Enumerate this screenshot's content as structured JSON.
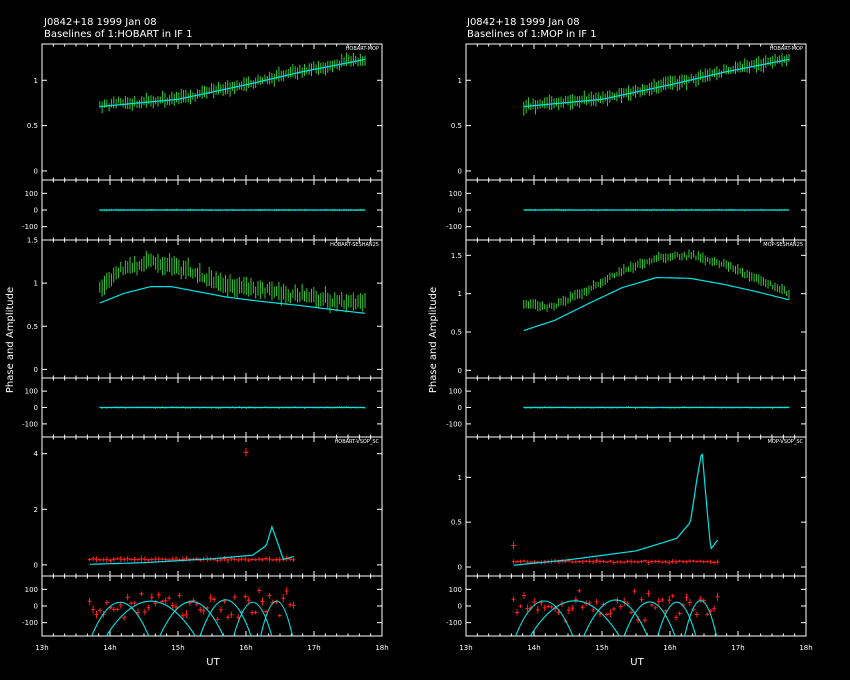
{
  "chart_data": {
    "type": "line",
    "figures": [
      {
        "title_line1": "J0842+18  1999 Jan 08",
        "title_line2": "Baselines of 1:HOBART in IF 1",
        "ylabel": "Phase and Amplitude",
        "xlabel": "UT",
        "x_ticks": [
          "13h",
          "14h",
          "15h",
          "16h",
          "17h",
          "18h"
        ],
        "x_range_hours": [
          13.0,
          18.0
        ],
        "rows": [
          {
            "baseline": "HOBART-MOP",
            "data_color": "#33cc33",
            "model_color": "#00e5e5",
            "amp": {
              "range": [
                -0.1,
                1.4
              ],
              "ticks": [
                0,
                0.5,
                1
              ],
              "tick_labels": [
                "0",
                "0.5",
                "1"
              ],
              "t_start": 13.85,
              "t_end": 17.75,
              "npts": 115,
              "err": 0.06,
              "data_curve": [
                [
                  13.85,
                  0.72
                ],
                [
                  15.0,
                  0.8
                ],
                [
                  16.0,
                  0.96
                ],
                [
                  16.8,
                  1.1
                ],
                [
                  17.75,
                  1.24
                ]
              ],
              "model_curve": [
                [
                  13.85,
                  0.71
                ],
                [
                  15.0,
                  0.79
                ],
                [
                  16.0,
                  0.95
                ],
                [
                  16.8,
                  1.09
                ],
                [
                  17.75,
                  1.23
                ]
              ]
            },
            "phase": {
              "range": [
                -180,
                180
              ],
              "ticks": [
                100,
                0,
                -100
              ],
              "tick_labels": [
                "100",
                "0",
                "-100"
              ],
              "data_spread": 4,
              "model_curve": [
                [
                  13.85,
                  0
                ],
                [
                  17.75,
                  0
                ]
              ]
            }
          },
          {
            "baseline": "HOBART-SESHAN25",
            "data_color": "#33cc33",
            "model_color": "#00e5e5",
            "amp": {
              "range": [
                -0.1,
                1.5
              ],
              "ticks": [
                0,
                0.5,
                1,
                1.5
              ],
              "tick_labels": [
                "0",
                "0.5",
                "1",
                "1.5"
              ],
              "t_start": 13.85,
              "t_end": 17.75,
              "npts": 115,
              "err": 0.08,
              "data_curve": [
                [
                  13.85,
                  0.95
                ],
                [
                  14.2,
                  1.18
                ],
                [
                  14.6,
                  1.24
                ],
                [
                  14.9,
                  1.2
                ],
                [
                  15.3,
                  1.1
                ],
                [
                  15.7,
                  0.98
                ],
                [
                  16.2,
                  0.92
                ],
                [
                  16.8,
                  0.86
                ],
                [
                  17.3,
                  0.8
                ],
                [
                  17.75,
                  0.78
                ]
              ],
              "model_curve": [
                [
                  13.85,
                  0.77
                ],
                [
                  14.2,
                  0.88
                ],
                [
                  14.6,
                  0.96
                ],
                [
                  14.9,
                  0.96
                ],
                [
                  15.3,
                  0.9
                ],
                [
                  15.7,
                  0.84
                ],
                [
                  16.2,
                  0.79
                ],
                [
                  16.8,
                  0.74
                ],
                [
                  17.3,
                  0.69
                ],
                [
                  17.75,
                  0.65
                ]
              ]
            },
            "phase": {
              "range": [
                -180,
                180
              ],
              "ticks": [
                100,
                0,
                -100
              ],
              "tick_labels": [
                "100",
                "0",
                "-100"
              ],
              "data_spread": 5,
              "model_curve": [
                [
                  13.85,
                  0
                ],
                [
                  17.75,
                  0
                ]
              ]
            }
          },
          {
            "baseline": "HOBART-VSOP_SC",
            "data_color": "#ff2222",
            "model_color": "#00e5e5",
            "amp": {
              "range": [
                -0.4,
                4.6
              ],
              "ticks": [
                0,
                2,
                4
              ],
              "tick_labels": [
                "0",
                "2",
                "4"
              ],
              "t_start": 13.7,
              "t_end": 16.7,
              "npts": 60,
              "err": 0.08,
              "data_curve": [
                [
                  13.7,
                  0.2
                ],
                [
                  16.7,
                  0.2
                ]
              ],
              "outlier": [
                16.0,
                4.05
              ],
              "model_curve": [
                [
                  13.7,
                  0.02
                ],
                [
                  14.5,
                  0.08
                ],
                [
                  15.5,
                  0.22
                ],
                [
                  16.1,
                  0.35
                ],
                [
                  16.3,
                  0.7
                ],
                [
                  16.38,
                  1.38
                ],
                [
                  16.45,
                  0.9
                ],
                [
                  16.55,
                  0.2
                ],
                [
                  16.7,
                  0.3
                ]
              ]
            },
            "phase": {
              "range": [
                -180,
                180
              ],
              "ticks": [
                100,
                0,
                -100
              ],
              "tick_labels": [
                "100",
                "0",
                "-100"
              ],
              "data_spread": 120,
              "model_curve": []
            }
          }
        ]
      },
      {
        "title_line1": "J0842+18  1999 Jan 08",
        "title_line2": "Baselines of 1:MOP in IF 1",
        "ylabel": "Phase and Amplitude",
        "xlabel": "UT",
        "x_ticks": [
          "13h",
          "14h",
          "15h",
          "16h",
          "17h",
          "18h"
        ],
        "x_range_hours": [
          13.0,
          18.0
        ],
        "rows": [
          {
            "baseline": "HOBART-MOP",
            "data_color": "#33cc33",
            "model_color": "#00e5e5",
            "amp": {
              "range": [
                -0.1,
                1.4
              ],
              "ticks": [
                0,
                0.5,
                1
              ],
              "tick_labels": [
                "0",
                "0.5",
                "1"
              ],
              "t_start": 13.85,
              "t_end": 17.75,
              "npts": 115,
              "err": 0.06,
              "data_curve": [
                [
                  13.85,
                  0.72
                ],
                [
                  15.0,
                  0.8
                ],
                [
                  16.0,
                  0.96
                ],
                [
                  16.8,
                  1.1
                ],
                [
                  17.75,
                  1.24
                ]
              ],
              "model_curve": [
                [
                  13.85,
                  0.71
                ],
                [
                  15.0,
                  0.79
                ],
                [
                  16.0,
                  0.95
                ],
                [
                  16.8,
                  1.09
                ],
                [
                  17.75,
                  1.23
                ]
              ]
            },
            "phase": {
              "range": [
                -180,
                180
              ],
              "ticks": [
                100,
                0,
                -100
              ],
              "tick_labels": [
                "100",
                "0",
                "-100"
              ],
              "data_spread": 4,
              "model_curve": [
                [
                  13.85,
                  0
                ],
                [
                  17.75,
                  0
                ]
              ]
            }
          },
          {
            "baseline": "MOP-SESHAN25",
            "data_color": "#33cc33",
            "model_color": "#00e5e5",
            "amp": {
              "range": [
                -0.1,
                1.7
              ],
              "ticks": [
                0,
                0.5,
                1,
                1.5
              ],
              "tick_labels": [
                "0",
                "0.5",
                "1",
                "1.5"
              ],
              "t_start": 13.85,
              "t_end": 17.75,
              "npts": 115,
              "err": 0.05,
              "data_curve": [
                [
                  13.85,
                  0.85
                ],
                [
                  14.3,
                  0.84
                ],
                [
                  14.8,
                  1.05
                ],
                [
                  15.3,
                  1.3
                ],
                [
                  15.8,
                  1.46
                ],
                [
                  16.3,
                  1.5
                ],
                [
                  16.8,
                  1.38
                ],
                [
                  17.3,
                  1.18
                ],
                [
                  17.75,
                  1.0
                ]
              ],
              "model_curve": [
                [
                  13.85,
                  0.52
                ],
                [
                  14.3,
                  0.65
                ],
                [
                  14.8,
                  0.87
                ],
                [
                  15.3,
                  1.08
                ],
                [
                  15.8,
                  1.21
                ],
                [
                  16.3,
                  1.2
                ],
                [
                  16.8,
                  1.12
                ],
                [
                  17.3,
                  1.02
                ],
                [
                  17.75,
                  0.92
                ]
              ]
            },
            "phase": {
              "range": [
                -180,
                180
              ],
              "ticks": [
                100,
                0,
                -100
              ],
              "tick_labels": [
                "100",
                "0",
                "-100"
              ],
              "data_spread": 5,
              "model_curve": [
                [
                  13.85,
                  0
                ],
                [
                  17.75,
                  0
                ]
              ]
            }
          },
          {
            "baseline": "MOP-VSOP_SC",
            "data_color": "#ff2222",
            "model_color": "#00e5e5",
            "amp": {
              "range": [
                -0.1,
                1.45
              ],
              "ticks": [
                0,
                0.5,
                1
              ],
              "tick_labels": [
                "0",
                "0.5",
                "1"
              ],
              "t_start": 13.7,
              "t_end": 16.7,
              "npts": 60,
              "err": 0.02,
              "data_curve": [
                [
                  13.7,
                  0.06
                ],
                [
                  16.7,
                  0.06
                ]
              ],
              "outlier": [
                13.7,
                0.24
              ],
              "model_curve": [
                [
                  13.7,
                  0.02
                ],
                [
                  14.5,
                  0.08
                ],
                [
                  15.5,
                  0.18
                ],
                [
                  16.1,
                  0.32
                ],
                [
                  16.3,
                  0.5
                ],
                [
                  16.4,
                  1.0
                ],
                [
                  16.47,
                  1.3
                ],
                [
                  16.55,
                  0.6
                ],
                [
                  16.6,
                  0.2
                ],
                [
                  16.7,
                  0.3
                ]
              ]
            },
            "phase": {
              "range": [
                -180,
                180
              ],
              "ticks": [
                100,
                0,
                -100
              ],
              "tick_labels": [
                "100",
                "0",
                "-100"
              ],
              "data_spread": 120,
              "model_curve": []
            }
          }
        ]
      }
    ]
  }
}
